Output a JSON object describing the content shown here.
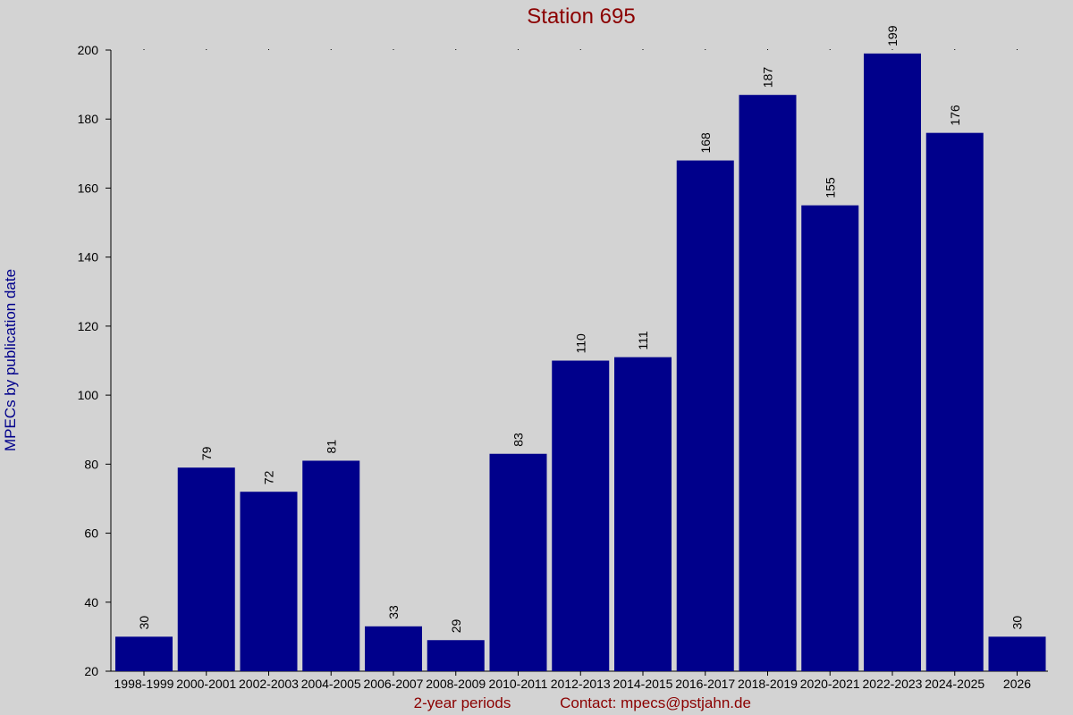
{
  "chart_data": {
    "type": "bar",
    "title": "Station 695",
    "ylabel": "MPECs by publication date",
    "xlabel": "2-year periods",
    "contact": "Contact: mpecs@pstjahn.de",
    "categories": [
      "1998-1999",
      "2000-2001",
      "2002-2003",
      "2004-2005",
      "2006-2007",
      "2008-2009",
      "2010-2011",
      "2012-2013",
      "2014-2015",
      "2016-2017",
      "2018-2019",
      "2020-2021",
      "2022-2023",
      "2024-2025",
      "2026"
    ],
    "values": [
      30,
      79,
      72,
      81,
      33,
      29,
      83,
      110,
      111,
      168,
      187,
      155,
      199,
      176,
      30
    ],
    "ylim": [
      20,
      200
    ],
    "yticks": [
      20,
      40,
      60,
      80,
      100,
      120,
      140,
      160,
      180,
      200
    ],
    "grid": false,
    "colors": {
      "background": "#d3d3d3",
      "bar": "#00008b",
      "title": "#8b0000",
      "ylabel": "#00008b",
      "footer": "#8b0000"
    }
  }
}
